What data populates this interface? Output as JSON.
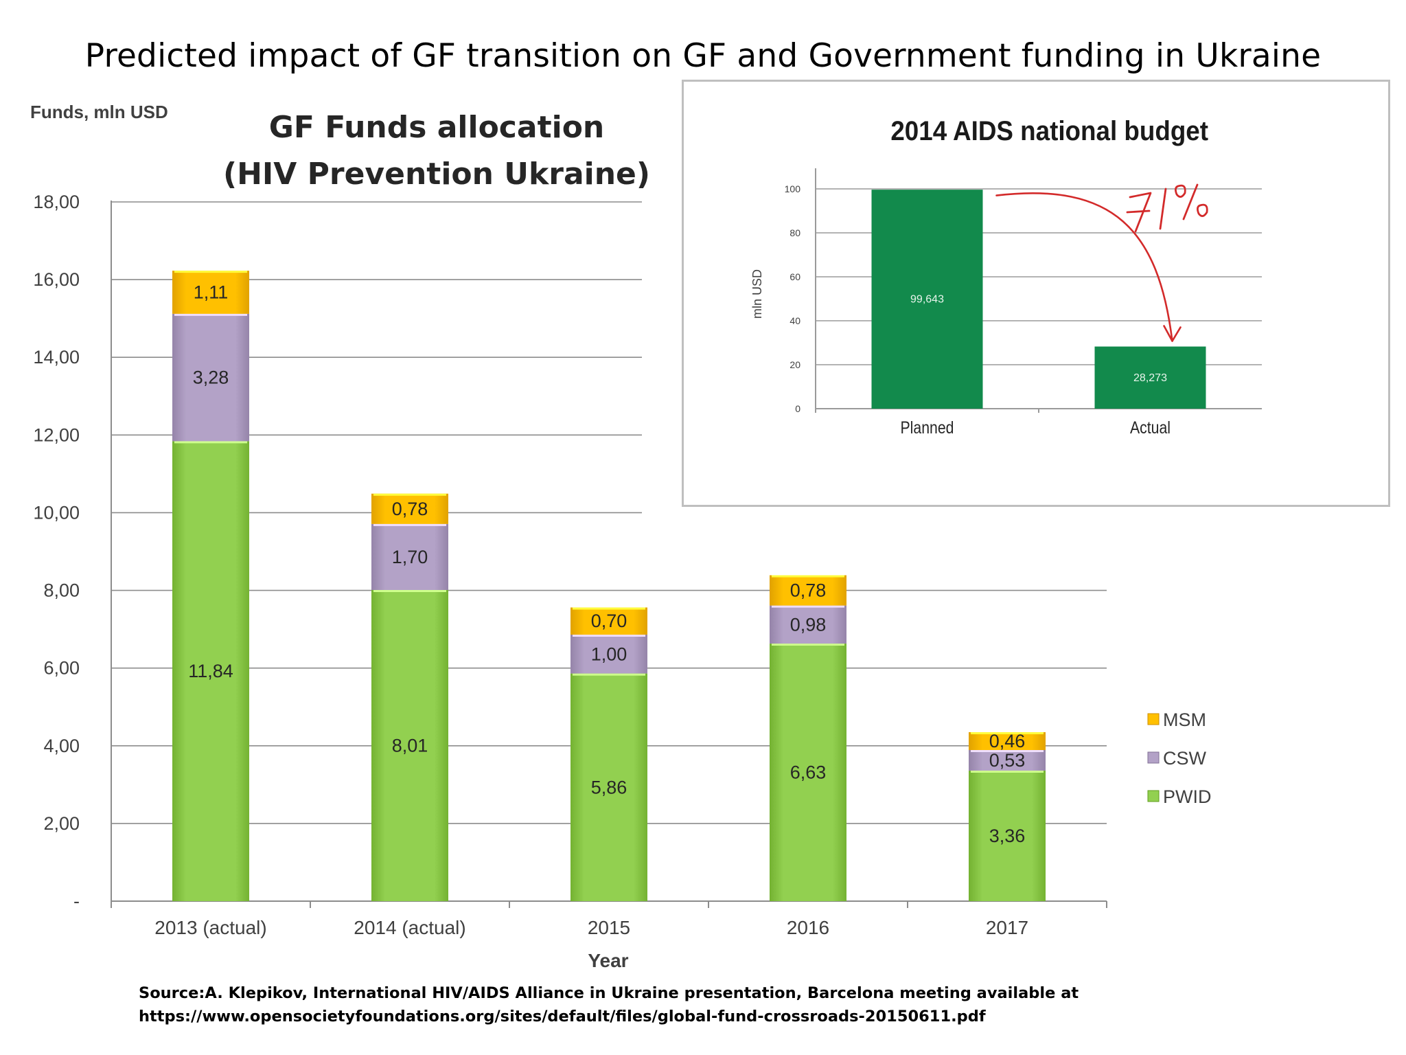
{
  "page": {
    "title": "Predicted impact of GF transition on GF and Government funding in Ukraine",
    "source_line1": "Source:A. Klepikov, International HIV/AIDS Alliance in Ukraine presentation, Barcelona meeting available at",
    "source_line2": "https://www.opensocietyfoundations.org/sites/default/files/global-fund-crossroads-20150611.pdf"
  },
  "chart_data": [
    {
      "type": "bar",
      "stacked": true,
      "title": "GF Funds allocation (HIV Prevention Ukraine)",
      "title_lines": [
        "GF Funds allocation",
        "(HIV Prevention Ukraine)"
      ],
      "ylabel": "Funds, mln USD",
      "xlabel": "Year",
      "categories": [
        "2013 (actual)",
        "2014 (actual)",
        "2015",
        "2016",
        "2017"
      ],
      "ylim": [
        0,
        18
      ],
      "yticks": [
        {
          "value": 0,
          "label": "-"
        },
        {
          "value": 2,
          "label": "2,00"
        },
        {
          "value": 4,
          "label": "4,00"
        },
        {
          "value": 6,
          "label": "6,00"
        },
        {
          "value": 8,
          "label": "8,00"
        },
        {
          "value": 10,
          "label": "10,00"
        },
        {
          "value": 12,
          "label": "12,00"
        },
        {
          "value": 14,
          "label": "14,00"
        },
        {
          "value": 16,
          "label": "16,00"
        },
        {
          "value": 18,
          "label": "18,00"
        }
      ],
      "grid": true,
      "legend_position": "right",
      "series": [
        {
          "name": "PWID",
          "color": "#92d050",
          "values": [
            11.84,
            8.01,
            5.86,
            6.63,
            3.36
          ],
          "labels": [
            "11,84",
            "8,01",
            "5,86",
            "6,63",
            "3,36"
          ]
        },
        {
          "name": "CSW",
          "color": "#b3a2c7",
          "values": [
            3.28,
            1.7,
            1.0,
            0.98,
            0.53
          ],
          "labels": [
            "3,28",
            "1,70",
            "1,00",
            "0,98",
            "0,53"
          ]
        },
        {
          "name": "MSM",
          "color": "#ffc000",
          "values": [
            1.11,
            0.78,
            0.7,
            0.78,
            0.46
          ],
          "labels": [
            "1,11",
            "0,78",
            "0,70",
            "0,78",
            "0,46"
          ]
        }
      ],
      "legend_order": [
        "MSM",
        "CSW",
        "PWID"
      ]
    },
    {
      "type": "bar",
      "title": "2014 AIDS national budget",
      "ylabel": "mln USD",
      "xlabel": "",
      "categories": [
        "Planned",
        "Actual"
      ],
      "values": [
        99.643,
        28.273
      ],
      "labels": [
        "99,643",
        "28,273"
      ],
      "color": "#128a4c",
      "ylim": [
        0,
        100
      ],
      "yticks": [
        0,
        20,
        40,
        60,
        80,
        100
      ],
      "grid": true,
      "annotation": {
        "text": "71%",
        "style": "handwritten red arrow from Planned to Actual",
        "color": "#d32a2a"
      }
    }
  ]
}
